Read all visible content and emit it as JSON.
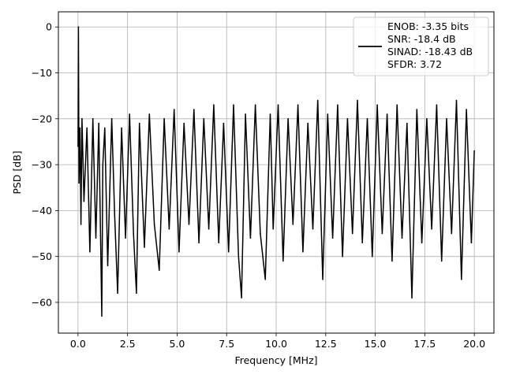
{
  "chart_data": {
    "type": "line",
    "title": "",
    "xlabel": "Frequency [MHz]",
    "ylabel": "PSD [dB]",
    "xlim": [
      -0.99,
      20.99
    ],
    "ylim": [
      -66.7,
      3.3
    ],
    "xticks": [
      0.0,
      2.5,
      5.0,
      7.5,
      10.0,
      12.5,
      15.0,
      17.5,
      20.0
    ],
    "xtick_labels": [
      "0.0",
      "2.5",
      "5.0",
      "7.5",
      "10.0",
      "12.5",
      "15.0",
      "17.5",
      "20.0"
    ],
    "yticks": [
      0,
      -10,
      -20,
      -30,
      -40,
      -50,
      -60
    ],
    "ytick_labels": [
      "0",
      "−10",
      "−20",
      "−30",
      "−40",
      "−50",
      "−60"
    ],
    "grid": true,
    "legend_position": "top-right",
    "legend_lines": [
      "ENOB: -3.35 bits",
      "SNR: -18.4 dB",
      "SINAD: -18.43 dB",
      "SFDR: 3.72"
    ],
    "series": [
      {
        "color": "#000000",
        "x": [
          0.0,
          0.02,
          0.05,
          0.1,
          0.15,
          0.2,
          0.3,
          0.45,
          0.6,
          0.75,
          0.9,
          1.05,
          1.2,
          1.25,
          1.35,
          1.5,
          1.7,
          1.85,
          2.0,
          2.2,
          2.4,
          2.6,
          2.8,
          2.95,
          3.1,
          3.35,
          3.6,
          3.85,
          4.1,
          4.35,
          4.6,
          4.85,
          5.1,
          5.35,
          5.6,
          5.85,
          6.1,
          6.35,
          6.6,
          6.85,
          7.1,
          7.35,
          7.6,
          7.85,
          8.1,
          8.25,
          8.45,
          8.7,
          8.95,
          9.2,
          9.45,
          9.7,
          9.85,
          10.1,
          10.35,
          10.6,
          10.85,
          11.1,
          11.35,
          11.6,
          11.85,
          12.1,
          12.35,
          12.6,
          12.85,
          13.1,
          13.35,
          13.6,
          13.85,
          14.1,
          14.35,
          14.6,
          14.85,
          15.1,
          15.35,
          15.6,
          15.85,
          16.1,
          16.35,
          16.6,
          16.85,
          17.1,
          17.35,
          17.6,
          17.85,
          18.1,
          18.35,
          18.6,
          18.85,
          19.1,
          19.35,
          19.6,
          19.85,
          20.0
        ],
        "y": [
          -26,
          0,
          -34,
          -22,
          -43,
          -20,
          -38,
          -22,
          -49,
          -20,
          -46,
          -21,
          -63,
          -30,
          -22,
          -52,
          -20,
          -41,
          -58,
          -22,
          -46,
          -19,
          -45,
          -58,
          -21,
          -48,
          -19,
          -43,
          -53,
          -20,
          -44,
          -18,
          -49,
          -21,
          -43,
          -18,
          -47,
          -20,
          -44,
          -17,
          -47,
          -21,
          -49,
          -17,
          -50,
          -59,
          -19,
          -46,
          -17,
          -45,
          -55,
          -19,
          -44,
          -17,
          -51,
          -20,
          -43,
          -17,
          -49,
          -21,
          -44,
          -16,
          -55,
          -19,
          -46,
          -17,
          -50,
          -20,
          -45,
          -16,
          -47,
          -20,
          -50,
          -17,
          -45,
          -19,
          -51,
          -17,
          -46,
          -21,
          -59,
          -18,
          -47,
          -20,
          -44,
          -17,
          -51,
          -20,
          -45,
          -16,
          -55,
          -18,
          -47,
          -27
        ]
      }
    ]
  }
}
